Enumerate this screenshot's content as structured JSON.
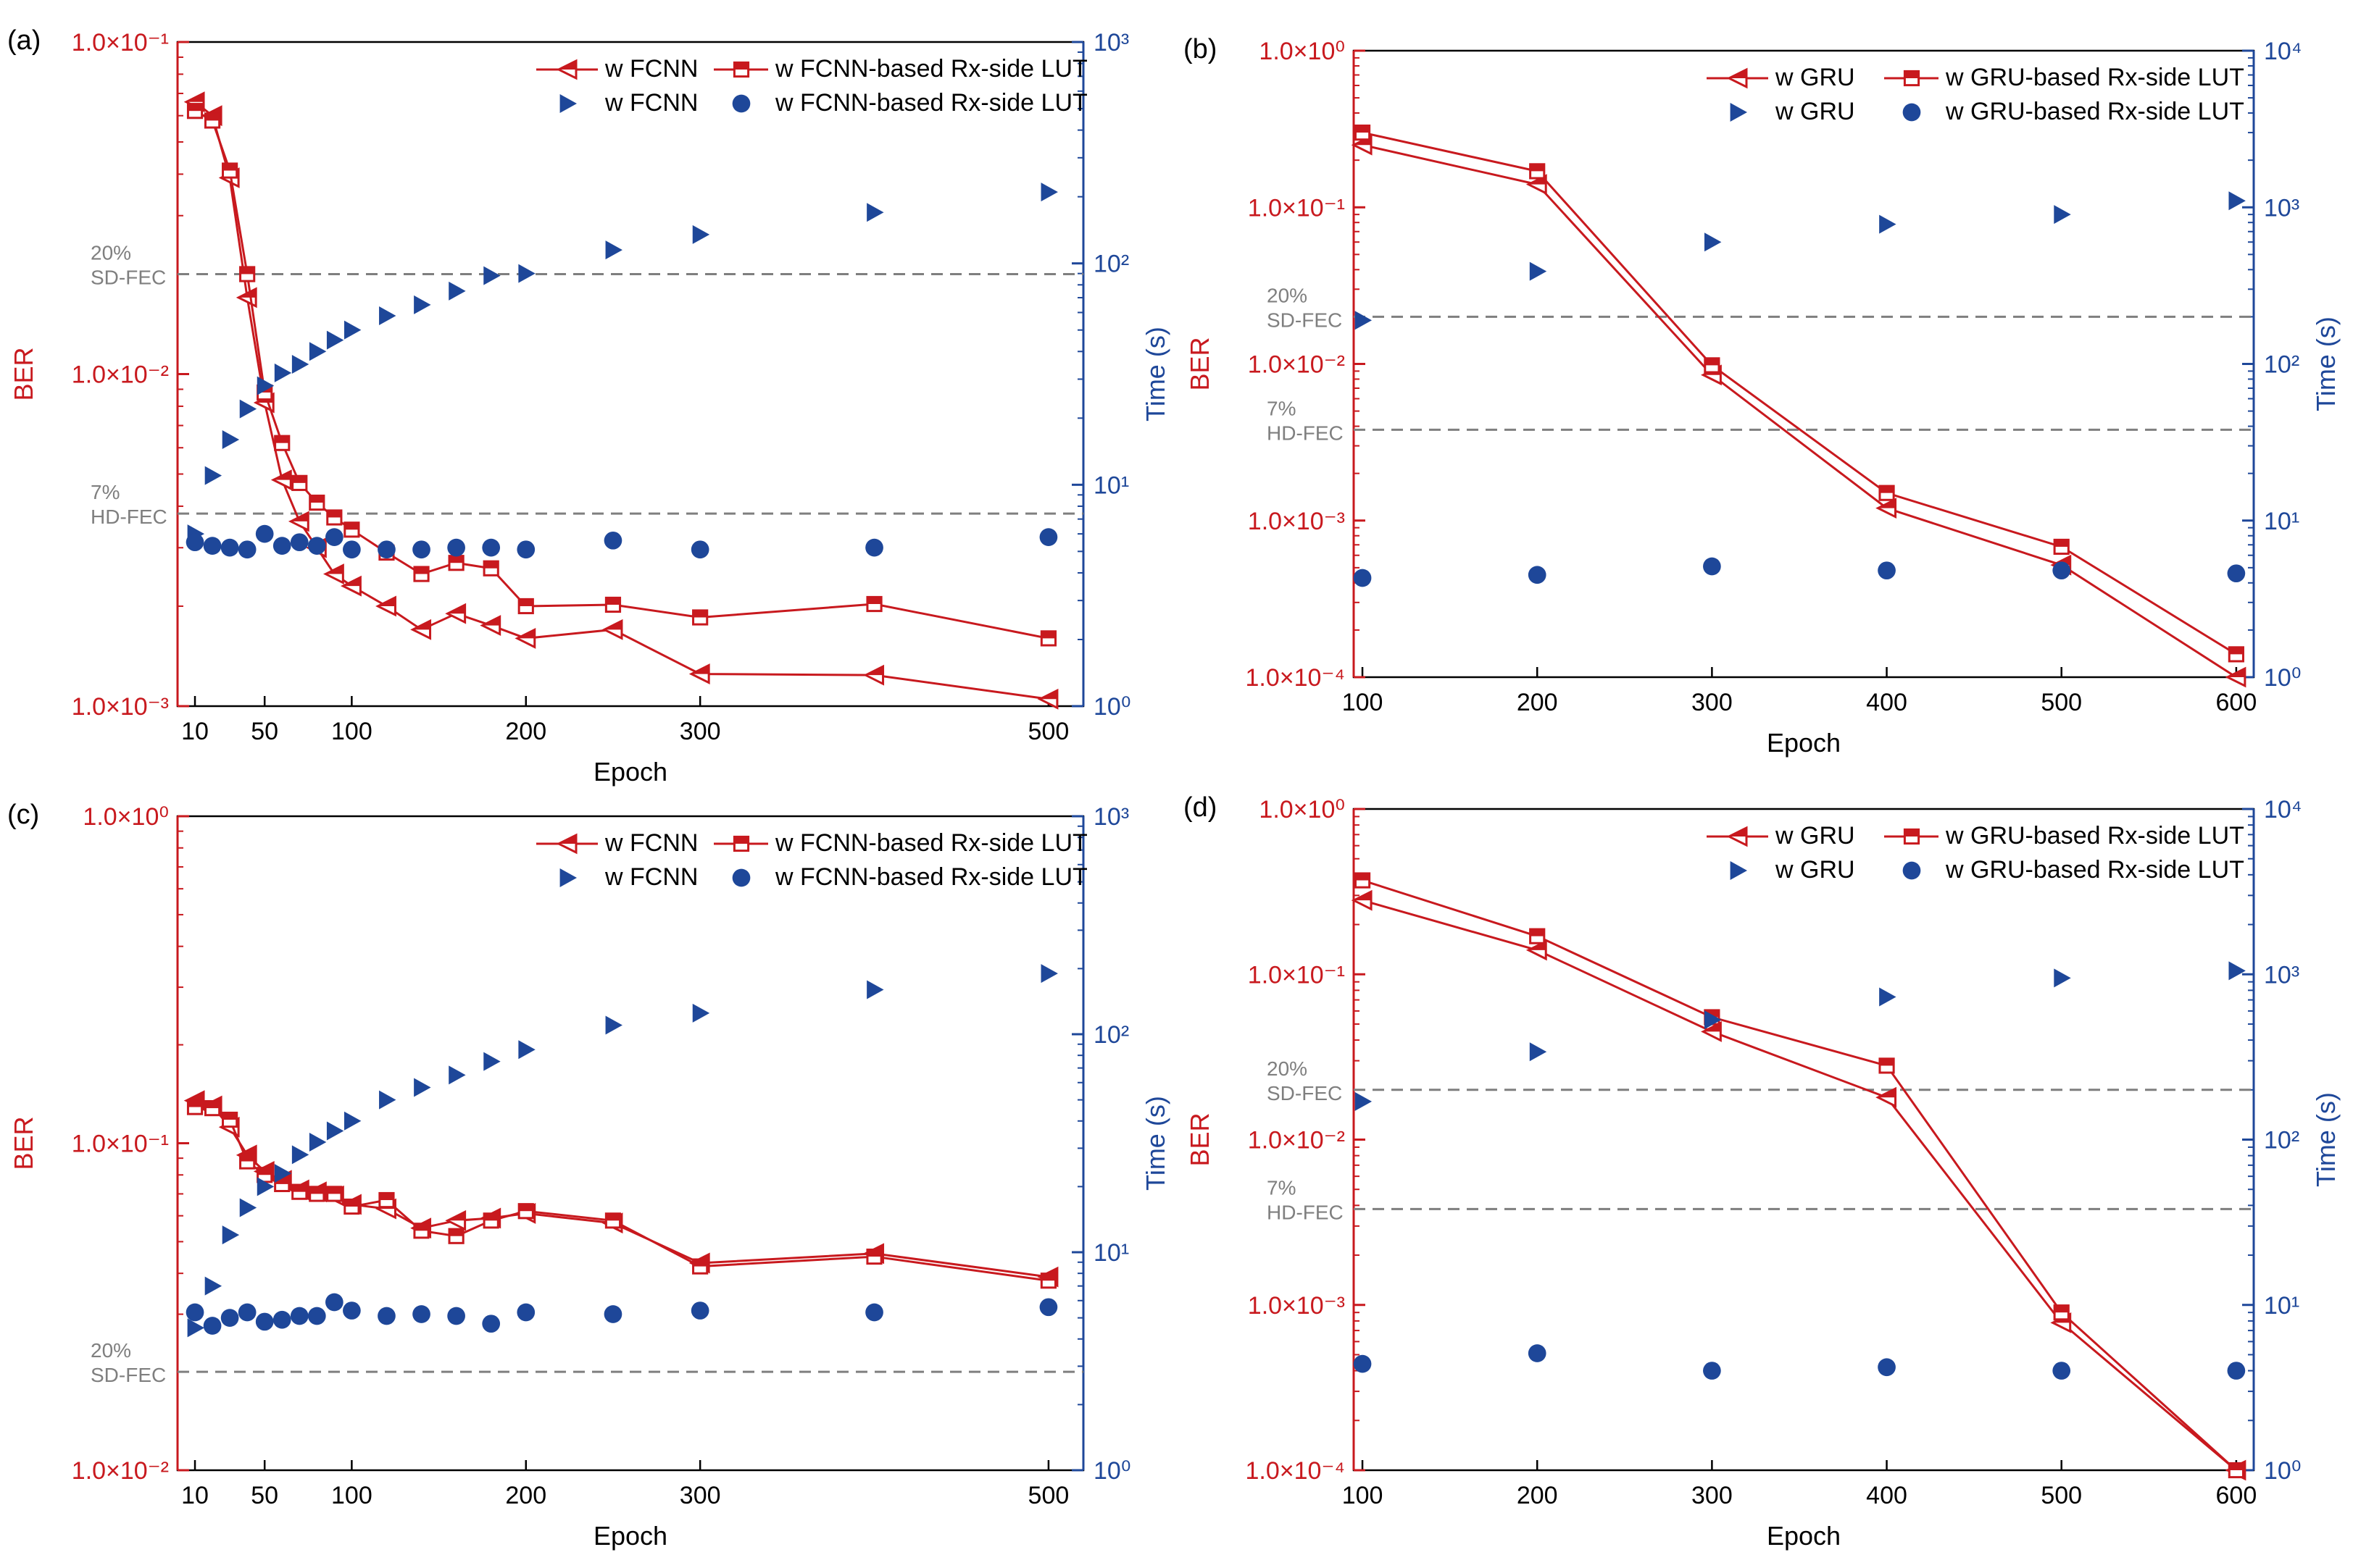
{
  "colors": {
    "ber": "#c8191e",
    "time": "#1e4799",
    "threshold": "#7f7f7f",
    "axis": "#000000"
  },
  "chart_data": [
    {
      "panel": "(a)",
      "type": "line",
      "xlabel": "Epoch",
      "ylabel_left": "BER",
      "ylabel_right": "Time (s)",
      "xlim": [
        0,
        520
      ],
      "ylim_left": [
        0.001,
        0.1
      ],
      "ylim_right": [
        1,
        1000
      ],
      "xticks": [
        10,
        50,
        100,
        200,
        300,
        500
      ],
      "left_ticks": [
        "1.0×10⁻³",
        "1.0×10⁻²",
        "1.0×10⁻¹"
      ],
      "right_ticks": [
        "10⁰",
        "10¹",
        "10²",
        "10³"
      ],
      "thresholds": [
        {
          "label": "20% SD-FEC",
          "line1": "20%",
          "line2": "SD-FEC",
          "value": 0.02
        },
        {
          "label": "7% HD-FEC",
          "line1": "7%",
          "line2": "HD-FEC",
          "value": 0.0038
        }
      ],
      "legend": {
        "ber_a": "w FCNN",
        "ber_b": "w FCNN-based Rx-side LUT",
        "time_a": "w FCNN",
        "time_b": "w FCNN-based Rx-side LUT"
      },
      "series": [
        {
          "name": "w FCNN",
          "axis": "left",
          "marker": "triangle-left",
          "x": [
            10,
            20,
            30,
            40,
            50,
            60,
            70,
            80,
            90,
            100,
            120,
            140,
            160,
            180,
            200,
            250,
            300,
            400,
            500
          ],
          "values": [
            0.066,
            0.06,
            0.039,
            0.017,
            0.0082,
            0.0048,
            0.0036,
            0.003,
            0.0025,
            0.0023,
            0.002,
            0.0017,
            0.0019,
            0.00175,
            0.0016,
            0.0017,
            0.00125,
            0.00124,
            0.00105
          ]
        },
        {
          "name": "w FCNN-based Rx-side LUT",
          "axis": "left",
          "marker": "square",
          "x": [
            10,
            20,
            30,
            40,
            50,
            60,
            70,
            80,
            90,
            100,
            120,
            140,
            160,
            180,
            200,
            250,
            300,
            400,
            500
          ],
          "values": [
            0.062,
            0.058,
            0.041,
            0.02,
            0.0088,
            0.0062,
            0.0047,
            0.0041,
            0.0037,
            0.0034,
            0.0029,
            0.0025,
            0.0027,
            0.0026,
            0.002,
            0.00202,
            0.00185,
            0.00203,
            0.0016
          ]
        },
        {
          "name": "w FCNN",
          "axis": "right",
          "marker": "triangle-right",
          "x": [
            10,
            20,
            30,
            40,
            50,
            60,
            70,
            80,
            90,
            100,
            120,
            140,
            160,
            180,
            200,
            250,
            300,
            400,
            500
          ],
          "values": [
            6,
            11,
            16,
            22,
            28,
            32,
            35,
            40,
            45,
            50,
            58,
            65,
            75,
            88,
            90,
            115,
            135,
            170,
            210
          ]
        },
        {
          "name": "w FCNN-based Rx-side LUT",
          "axis": "right",
          "marker": "circle",
          "x": [
            10,
            20,
            30,
            40,
            50,
            60,
            70,
            80,
            90,
            100,
            120,
            140,
            160,
            180,
            200,
            250,
            300,
            400,
            500
          ],
          "values": [
            5.5,
            5.3,
            5.2,
            5.1,
            6,
            5.3,
            5.5,
            5.3,
            5.8,
            5.1,
            5.1,
            5.1,
            5.2,
            5.2,
            5.1,
            5.6,
            5.1,
            5.2,
            5.8
          ]
        }
      ]
    },
    {
      "panel": "(b)",
      "type": "line",
      "xlabel": "Epoch",
      "ylabel_left": "BER",
      "ylabel_right": "Time (s)",
      "xlim": [
        95,
        610
      ],
      "ylim_left": [
        0.0001,
        1
      ],
      "ylim_right": [
        1,
        10000
      ],
      "xticks": [
        100,
        200,
        300,
        400,
        500,
        600
      ],
      "left_ticks": [
        "1.0×10⁻⁴",
        "1.0×10⁻³",
        "1.0×10⁻²",
        "1.0×10⁻¹",
        "1.0×10⁰"
      ],
      "right_ticks": [
        "10⁰",
        "10¹",
        "10²",
        "10³",
        "10⁴"
      ],
      "thresholds": [
        {
          "label": "20% SD-FEC",
          "line1": "20%",
          "line2": "SD-FEC",
          "value": 0.02
        },
        {
          "label": "7% HD-FEC",
          "line1": "7%",
          "line2": "HD-FEC",
          "value": 0.0038
        }
      ],
      "legend": {
        "ber_a": "w GRU",
        "ber_b": "w GRU-based Rx-side LUT",
        "time_a": "w GRU",
        "time_b": "w GRU-based Rx-side LUT"
      },
      "series": [
        {
          "name": "w GRU",
          "axis": "left",
          "marker": "triangle-left",
          "x": [
            100,
            200,
            300,
            400,
            500,
            600
          ],
          "values": [
            0.25,
            0.14,
            0.0085,
            0.0012,
            0.00052,
            0.0001
          ]
        },
        {
          "name": "w GRU-based Rx-side LUT",
          "axis": "left",
          "marker": "square",
          "x": [
            100,
            200,
            300,
            400,
            500,
            600
          ],
          "values": [
            0.3,
            0.17,
            0.0098,
            0.0015,
            0.00068,
            0.00014
          ]
        },
        {
          "name": "w GRU",
          "axis": "right",
          "marker": "triangle-right",
          "x": [
            100,
            200,
            300,
            400,
            500,
            600
          ],
          "values": [
            190,
            390,
            600,
            780,
            900,
            1100
          ]
        },
        {
          "name": "w GRU-based Rx-side LUT",
          "axis": "right",
          "marker": "circle",
          "x": [
            100,
            200,
            300,
            400,
            500,
            600
          ],
          "values": [
            4.3,
            4.5,
            5.1,
            4.8,
            4.8,
            4.6
          ]
        }
      ]
    },
    {
      "panel": "(c)",
      "type": "line",
      "xlabel": "Epoch",
      "ylabel_left": "BER",
      "ylabel_right": "Time (s)",
      "xlim": [
        0,
        520
      ],
      "ylim_left": [
        0.01,
        1
      ],
      "ylim_right": [
        1,
        1000
      ],
      "xticks": [
        10,
        50,
        100,
        200,
        300,
        500
      ],
      "left_ticks": [
        "1.0×10⁻²",
        "1.0×10⁻¹",
        "1.0×10⁰"
      ],
      "right_ticks": [
        "10⁰",
        "10¹",
        "10²",
        "10³"
      ],
      "thresholds": [
        {
          "label": "20% SD-FEC",
          "line1": "20%",
          "line2": "SD-FEC",
          "value": 0.02
        }
      ],
      "legend": {
        "ber_a": "w FCNN",
        "ber_b": "w FCNN-based Rx-side LUT",
        "time_a": "w FCNN",
        "time_b": "w FCNN-based Rx-side LUT"
      },
      "series": [
        {
          "name": "w FCNN",
          "axis": "left",
          "marker": "triangle-left",
          "x": [
            10,
            20,
            30,
            40,
            50,
            60,
            70,
            80,
            90,
            100,
            120,
            140,
            160,
            180,
            200,
            250,
            300,
            400,
            500
          ],
          "values": [
            0.135,
            0.13,
            0.112,
            0.092,
            0.082,
            0.077,
            0.072,
            0.071,
            0.069,
            0.065,
            0.063,
            0.055,
            0.058,
            0.059,
            0.061,
            0.057,
            0.043,
            0.046,
            0.039
          ]
        },
        {
          "name": "w FCNN-based Rx-side LUT",
          "axis": "left",
          "marker": "square",
          "x": [
            10,
            20,
            30,
            40,
            50,
            60,
            70,
            80,
            90,
            100,
            120,
            140,
            160,
            180,
            200,
            250,
            300,
            400,
            500
          ],
          "values": [
            0.129,
            0.128,
            0.118,
            0.088,
            0.08,
            0.075,
            0.071,
            0.07,
            0.07,
            0.064,
            0.067,
            0.054,
            0.052,
            0.058,
            0.062,
            0.058,
            0.042,
            0.045,
            0.038
          ]
        },
        {
          "name": "w FCNN",
          "axis": "right",
          "marker": "triangle-right",
          "x": [
            10,
            20,
            30,
            40,
            50,
            60,
            70,
            80,
            90,
            100,
            120,
            140,
            160,
            180,
            200,
            250,
            300,
            400,
            500
          ],
          "values": [
            4.5,
            7,
            12,
            16,
            20,
            23,
            28,
            32,
            36,
            40,
            50,
            57,
            65,
            75,
            85,
            110,
            125,
            160,
            190
          ]
        },
        {
          "name": "w FCNN-based Rx-side LUT",
          "axis": "right",
          "marker": "circle",
          "x": [
            10,
            20,
            30,
            40,
            50,
            60,
            70,
            80,
            90,
            100,
            120,
            140,
            160,
            180,
            200,
            250,
            300,
            400,
            500
          ],
          "values": [
            5.3,
            4.6,
            5,
            5.3,
            4.8,
            4.9,
            5.1,
            5.1,
            5.9,
            5.4,
            5.1,
            5.2,
            5.1,
            4.7,
            5.3,
            5.2,
            5.4,
            5.3,
            5.6
          ]
        }
      ]
    },
    {
      "panel": "(d)",
      "type": "line",
      "xlabel": "Epoch",
      "ylabel_left": "BER",
      "ylabel_right": "Time (s)",
      "xlim": [
        95,
        610
      ],
      "ylim_left": [
        0.0001,
        1
      ],
      "ylim_right": [
        1,
        10000
      ],
      "xticks": [
        100,
        200,
        300,
        400,
        500,
        600
      ],
      "left_ticks": [
        "1.0×10⁻⁴",
        "1.0×10⁻³",
        "1.0×10⁻²",
        "1.0×10⁻¹",
        "1.0×10⁰"
      ],
      "right_ticks": [
        "10⁰",
        "10¹",
        "10²",
        "10³",
        "10⁴"
      ],
      "thresholds": [
        {
          "label": "20% SD-FEC",
          "line1": "20%",
          "line2": "SD-FEC",
          "value": 0.02
        },
        {
          "label": "7% HD-FEC",
          "line1": "7%",
          "line2": "HD-FEC",
          "value": 0.0038
        }
      ],
      "legend": {
        "ber_a": "w GRU",
        "ber_b": "w GRU-based Rx-side LUT",
        "time_a": "w GRU",
        "time_b": "w GRU-based Rx-side LUT"
      },
      "series": [
        {
          "name": "w GRU",
          "axis": "left",
          "marker": "triangle-left",
          "x": [
            100,
            200,
            300,
            400,
            500,
            600
          ],
          "values": [
            0.28,
            0.14,
            0.045,
            0.018,
            0.00078,
            0.0001
          ]
        },
        {
          "name": "w GRU-based Rx-side LUT",
          "axis": "left",
          "marker": "square",
          "x": [
            100,
            200,
            300,
            400,
            500,
            600
          ],
          "values": [
            0.37,
            0.17,
            0.055,
            0.028,
            0.0009,
            0.0001
          ]
        },
        {
          "name": "w GRU",
          "axis": "right",
          "marker": "triangle-right",
          "x": [
            100,
            200,
            300,
            400,
            500,
            600
          ],
          "values": [
            170,
            340,
            530,
            730,
            950,
            1050
          ]
        },
        {
          "name": "w GRU-based Rx-side LUT",
          "axis": "right",
          "marker": "circle",
          "x": [
            100,
            200,
            300,
            400,
            500,
            600
          ],
          "values": [
            4.4,
            5.1,
            4,
            4.2,
            4,
            4
          ]
        }
      ]
    }
  ]
}
